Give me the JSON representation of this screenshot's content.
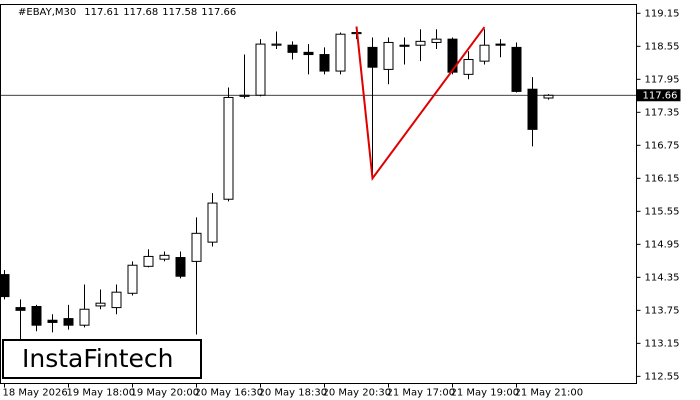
{
  "chart_data": {
    "type": "candlestick",
    "symbol": "#EBAY,M30",
    "categories": [
      "18 May 2026",
      null,
      null,
      null,
      "19 May 18:00",
      null,
      null,
      null,
      "19 May 20:00",
      null,
      null,
      null,
      "20 May 16:30",
      null,
      null,
      null,
      "20 May 18:30",
      null,
      null,
      null,
      "20 May 20:30",
      null,
      null,
      null,
      "21 May 17:00",
      null,
      null,
      null,
      "21 May 19:00",
      null,
      null,
      null,
      "21 May 21:00",
      null,
      null
    ],
    "open": [
      114.4,
      113.8,
      113.82,
      113.57,
      113.6,
      113.48,
      113.83,
      113.8,
      114.06,
      114.55,
      114.68,
      114.71,
      114.64,
      114.99,
      115.77,
      117.64,
      117.66,
      118.57,
      118.57,
      118.44,
      118.4,
      118.1,
      118.78,
      118.53,
      118.13,
      118.57,
      118.57,
      118.62,
      118.68,
      118.04,
      118.28,
      118.59,
      118.53,
      117.77,
      117.61
    ],
    "high": [
      114.48,
      113.95,
      113.85,
      113.68,
      113.85,
      114.22,
      114.13,
      114.22,
      114.64,
      114.86,
      114.82,
      114.82,
      115.44,
      115.88,
      117.8,
      118.4,
      118.68,
      118.82,
      118.64,
      118.59,
      118.53,
      118.8,
      118.9,
      118.71,
      118.71,
      118.71,
      118.86,
      118.86,
      118.71,
      118.46,
      118.86,
      118.68,
      118.62,
      117.99,
      117.68
    ],
    "low": [
      113.95,
      113.2,
      113.37,
      113.35,
      113.4,
      113.44,
      113.77,
      113.68,
      114.02,
      114.53,
      114.64,
      114.33,
      113.31,
      114.91,
      115.73,
      117.6,
      117.64,
      118.5,
      118.31,
      118.04,
      118.04,
      118.04,
      118.68,
      116.15,
      117.86,
      118.22,
      118.28,
      118.5,
      118.04,
      117.95,
      118.22,
      118.35,
      117.71,
      116.73,
      117.58
    ],
    "close": [
      114.0,
      113.75,
      113.48,
      113.53,
      113.48,
      113.77,
      113.88,
      114.08,
      114.57,
      114.73,
      114.75,
      114.37,
      115.15,
      115.7,
      117.62,
      117.66,
      118.59,
      118.59,
      118.44,
      118.4,
      118.1,
      118.77,
      118.8,
      118.17,
      118.62,
      118.55,
      118.64,
      118.68,
      118.08,
      118.31,
      118.57,
      118.57,
      117.73,
      117.04,
      117.66
    ],
    "up_color": "#ffffff",
    "down_color": "#000000",
    "pattern": {
      "color": "#e00000",
      "x": [
        22,
        23,
        30
      ],
      "y": [
        118.91,
        116.15,
        118.9
      ]
    },
    "ylim": [
      112.42,
      119.31
    ],
    "yticks": [
      119.15,
      118.55,
      117.95,
      117.35,
      116.75,
      116.15,
      115.55,
      114.95,
      114.35,
      113.75,
      113.15,
      112.55
    ],
    "watermark": "InstaFintech"
  }
}
